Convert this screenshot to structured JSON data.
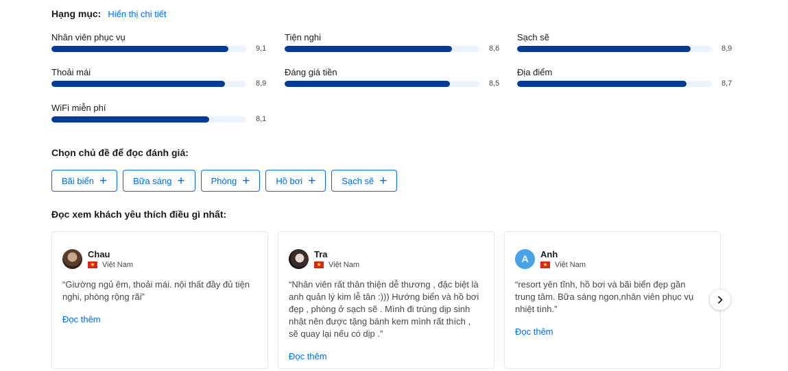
{
  "header": {
    "title": "Hạng mục:",
    "details_link": "Hiển thị chi tiết"
  },
  "categories": [
    {
      "label": "Nhân viên phục vụ",
      "score": "9,1",
      "value": 9.1
    },
    {
      "label": "Tiện nghi",
      "score": "8,6",
      "value": 8.6
    },
    {
      "label": "Sạch sẽ",
      "score": "8,9",
      "value": 8.9
    },
    {
      "label": "Thoải mái",
      "score": "8,9",
      "value": 8.9
    },
    {
      "label": "Đáng giá tiền",
      "score": "8,5",
      "value": 8.5
    },
    {
      "label": "Địa điểm",
      "score": "8,7",
      "value": 8.7
    },
    {
      "label": "WiFi miễn phí",
      "score": "8,1",
      "value": 8.1
    }
  ],
  "topics": {
    "title": "Chọn chủ đề để đọc đánh giá:",
    "chips": [
      "Bãi biển",
      "Bữa sáng",
      "Phòng",
      "Hồ bơi",
      "Sạch sẽ"
    ],
    "chip_icon": "plus-icon"
  },
  "reviews": {
    "title": "Đọc xem khách yêu thích điều gì nhất:",
    "read_more": "Đọc thêm",
    "items": [
      {
        "name": "Chau",
        "country": "Việt Nam",
        "avatar": "photo",
        "text": "“Giường ngủ êm, thoải mái. nội thất đầy đủ tiện nghi, phòng rộng rãi”"
      },
      {
        "name": "Tra",
        "country": "Việt Nam",
        "avatar": "photo",
        "text": "“Nhân viên rất thân thiện dễ thương , đặc biệt là anh quản lý kim lễ tân :))) Hướng biển và hồ bơi đẹp , phòng ở sạch sẽ . Mình đi trúng dịp sinh nhật nên được tặng bánh kem mình rất thích , sẽ quay lại nếu có dịp .”"
      },
      {
        "name": "Anh",
        "country": "Việt Nam",
        "avatar_letter": "A",
        "text": "“resort yên tĩnh, hồ bơi và bãi biển đẹp gần trung tâm. Bữa sáng ngon,nhân viên phục vụ nhiệt tình.”"
      }
    ]
  },
  "colors": {
    "bar_fill": "#003b95",
    "bar_track": "#ebf3ff",
    "link": "#006ce4"
  },
  "carousel": {
    "next_icon": "chevron-right-icon"
  }
}
